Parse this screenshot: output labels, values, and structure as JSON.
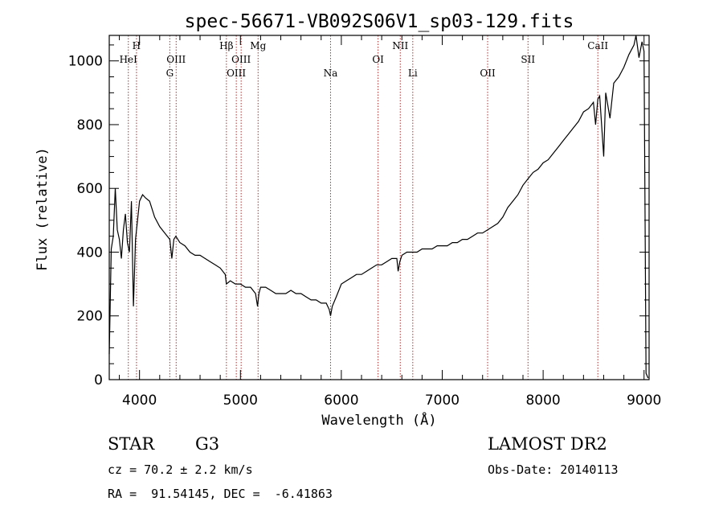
{
  "chart_data": {
    "type": "line",
    "title": "spec-56671-VB092S06V1_sp03-129.fits",
    "xlabel": "Wavelength (Å)",
    "ylabel": "Flux (relative)",
    "xlim": [
      3700,
      9050
    ],
    "ylim": [
      0,
      1080
    ],
    "xticks": [
      4000,
      5000,
      6000,
      7000,
      8000,
      9000
    ],
    "yticks": [
      0,
      200,
      400,
      600,
      800,
      1000
    ],
    "grid": false,
    "series": [
      {
        "name": "spectrum",
        "x": [
          3700,
          3720,
          3740,
          3760,
          3780,
          3800,
          3820,
          3840,
          3860,
          3880,
          3900,
          3920,
          3940,
          3960,
          3980,
          4000,
          4030,
          4060,
          4100,
          4150,
          4200,
          4250,
          4300,
          4320,
          4340,
          4360,
          4400,
          4450,
          4500,
          4550,
          4600,
          4650,
          4700,
          4750,
          4800,
          4850,
          4861,
          4900,
          4950,
          5000,
          5050,
          5100,
          5150,
          5170,
          5183,
          5200,
          5250,
          5300,
          5350,
          5400,
          5450,
          5500,
          5550,
          5600,
          5650,
          5700,
          5750,
          5800,
          5850,
          5880,
          5893,
          5910,
          5950,
          6000,
          6050,
          6100,
          6150,
          6200,
          6250,
          6300,
          6350,
          6400,
          6450,
          6500,
          6550,
          6563,
          6580,
          6600,
          6650,
          6700,
          6750,
          6800,
          6850,
          6900,
          6950,
          7000,
          7050,
          7100,
          7150,
          7200,
          7250,
          7300,
          7350,
          7400,
          7450,
          7500,
          7550,
          7600,
          7650,
          7700,
          7750,
          7800,
          7850,
          7900,
          7950,
          8000,
          8050,
          8100,
          8150,
          8200,
          8250,
          8300,
          8350,
          8400,
          8450,
          8498,
          8520,
          8542,
          8560,
          8600,
          8620,
          8662,
          8700,
          8750,
          8800,
          8850,
          8900,
          8920,
          8950,
          8980,
          9000,
          9020,
          9040
        ],
        "y": [
          80,
          410,
          450,
          600,
          470,
          440,
          380,
          470,
          520,
          430,
          400,
          560,
          230,
          440,
          500,
          560,
          580,
          570,
          560,
          510,
          480,
          460,
          440,
          380,
          440,
          450,
          430,
          420,
          400,
          390,
          390,
          380,
          370,
          360,
          350,
          330,
          300,
          310,
          300,
          300,
          290,
          290,
          270,
          230,
          270,
          290,
          290,
          280,
          270,
          270,
          270,
          280,
          270,
          270,
          260,
          250,
          250,
          240,
          240,
          220,
          200,
          230,
          260,
          300,
          310,
          320,
          330,
          330,
          340,
          350,
          360,
          360,
          370,
          380,
          380,
          340,
          370,
          390,
          400,
          400,
          400,
          410,
          410,
          410,
          420,
          420,
          420,
          430,
          430,
          440,
          440,
          450,
          460,
          460,
          470,
          480,
          490,
          510,
          540,
          560,
          580,
          610,
          630,
          650,
          660,
          680,
          690,
          710,
          730,
          750,
          770,
          790,
          810,
          840,
          850,
          870,
          800,
          880,
          890,
          700,
          900,
          820,
          930,
          950,
          980,
          1020,
          1050,
          1080,
          1010,
          1060,
          1030,
          20,
          5
        ]
      }
    ],
    "lines": [
      {
        "wavelength": 3889,
        "label": "HeI",
        "row": 1
      },
      {
        "wavelength": 3970,
        "label": "H",
        "row": 0
      },
      {
        "wavelength": 4300,
        "label": "G",
        "row": 2
      },
      {
        "wavelength": 4363,
        "label": "OIII",
        "row": 1
      },
      {
        "wavelength": 4861,
        "label": "Hβ",
        "row": 0
      },
      {
        "wavelength": 4959,
        "label": "OIII",
        "row": 2
      },
      {
        "wavelength": 5007,
        "label": "OIII",
        "row": 1
      },
      {
        "wavelength": 5175,
        "label": "Mg",
        "row": 0
      },
      {
        "wavelength": 5893,
        "label": "Na",
        "row": 2
      },
      {
        "wavelength": 6364,
        "label": "OI",
        "row": 1
      },
      {
        "wavelength": 6584,
        "label": "NII",
        "row": 0
      },
      {
        "wavelength": 6708,
        "label": "Li",
        "row": 2
      },
      {
        "wavelength": 7450,
        "label": "OII",
        "row": 2
      },
      {
        "wavelength": 7850,
        "label": "SII",
        "row": 1
      },
      {
        "wavelength": 8542,
        "label": "CaII",
        "row": 0
      }
    ]
  },
  "info": {
    "object_class": "STAR",
    "subclass": "G3",
    "survey": "LAMOST DR2",
    "redshift": "cz = 70.2 ± 2.2 km/s",
    "obs_date": "Obs-Date: 20140113",
    "coords": "RA =  91.54145, DEC =  -6.41863"
  },
  "colors": {
    "axis": "#000000",
    "spectrum": "#000000",
    "line_marker": "#b03030",
    "background": "#ffffff"
  }
}
